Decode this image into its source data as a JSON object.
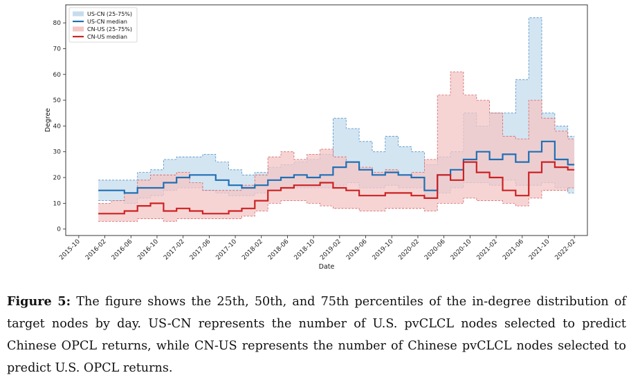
{
  "chart_data": {
    "type": "line",
    "xlabel": "Date",
    "ylabel": "Degree",
    "ylim": [
      -2.5,
      87
    ],
    "xlim": [
      "2015-08",
      "2022-04"
    ],
    "yticks": [
      0,
      10,
      20,
      30,
      40,
      50,
      60,
      70,
      80
    ],
    "xticks": [
      "2015-10",
      "2016-02",
      "2016-06",
      "2016-10",
      "2017-02",
      "2017-06",
      "2017-10",
      "2018-02",
      "2018-06",
      "2018-10",
      "2019-02",
      "2019-06",
      "2019-10",
      "2020-02",
      "2020-06",
      "2020-10",
      "2021-02",
      "2021-06",
      "2021-10",
      "2022-02"
    ],
    "x": [
      "2016-01",
      "2016-03",
      "2016-05",
      "2016-07",
      "2016-09",
      "2016-11",
      "2017-01",
      "2017-03",
      "2017-05",
      "2017-07",
      "2017-09",
      "2017-11",
      "2018-01",
      "2018-03",
      "2018-05",
      "2018-07",
      "2018-09",
      "2018-11",
      "2019-01",
      "2019-03",
      "2019-05",
      "2019-07",
      "2019-09",
      "2019-11",
      "2020-01",
      "2020-03",
      "2020-05",
      "2020-07",
      "2020-09",
      "2020-11",
      "2021-01",
      "2021-03",
      "2021-05",
      "2021-07",
      "2021-09",
      "2021-11",
      "2022-01"
    ],
    "legend": [
      "US-CN (25-75%)",
      "US-CN median",
      "CN-US (25-75%)",
      "CN-US median"
    ],
    "legend_position": "top-left",
    "series": [
      {
        "name": "US-CN median",
        "color": "#1f6fb4",
        "values": [
          15,
          15,
          14,
          16,
          16,
          18,
          20,
          21,
          21,
          19,
          17,
          16,
          17,
          19,
          20,
          21,
          20,
          21,
          24,
          26,
          23,
          21,
          22,
          21,
          20,
          15,
          21,
          23,
          27,
          30,
          27,
          29,
          26,
          30,
          34,
          27,
          25
        ]
      },
      {
        "name": "CN-US median",
        "color": "#cc2222",
        "values": [
          6,
          6,
          7,
          9,
          10,
          7,
          8,
          7,
          6,
          6,
          7,
          8,
          11,
          15,
          16,
          17,
          17,
          18,
          16,
          15,
          13,
          13,
          14,
          14,
          13,
          12,
          21,
          19,
          26,
          22,
          20,
          15,
          13,
          22,
          26,
          24,
          23
        ]
      },
      {
        "name": "US-CN (25-75%)",
        "color": "#c6dcee",
        "edge": "#4a8fc8",
        "low": [
          11,
          11,
          10,
          12,
          13,
          15,
          16,
          16,
          15,
          14,
          13,
          13,
          14,
          15,
          16,
          16,
          16,
          16,
          17,
          18,
          16,
          16,
          17,
          16,
          16,
          12,
          14,
          16,
          18,
          18,
          17,
          19,
          17,
          17,
          18,
          16,
          14
        ],
        "high": [
          19,
          19,
          19,
          22,
          23,
          27,
          28,
          28,
          29,
          26,
          23,
          21,
          22,
          24,
          25,
          26,
          27,
          29,
          43,
          39,
          34,
          30,
          36,
          32,
          30,
          25,
          28,
          30,
          45,
          40,
          45,
          45,
          58,
          82,
          45,
          40,
          36
        ]
      },
      {
        "name": "CN-US (25-75%)",
        "color": "#f4c6c6",
        "edge": "#d26060",
        "low": [
          3,
          3,
          3,
          4,
          4,
          3,
          4,
          4,
          4,
          4,
          4,
          5,
          7,
          10,
          11,
          11,
          10,
          9,
          8,
          8,
          7,
          7,
          8,
          8,
          8,
          7,
          10,
          10,
          12,
          11,
          11,
          10,
          9,
          12,
          15,
          15,
          16
        ],
        "high": [
          10,
          11,
          14,
          19,
          21,
          21,
          22,
          18,
          15,
          15,
          15,
          17,
          21,
          28,
          30,
          27,
          29,
          31,
          28,
          26,
          24,
          22,
          23,
          21,
          22,
          27,
          52,
          61,
          52,
          50,
          45,
          36,
          35,
          50,
          43,
          38,
          35
        ]
      }
    ]
  },
  "caption": {
    "label": "Figure 5:",
    "text": "The figure shows the 25th, 50th, and 75th percentiles of the in-degree distribution of target nodes by day. US-CN represents the number of U.S. pvCLCL nodes selected to predict Chinese OPCL returns, while CN-US represents the number of Chinese pvCLCL nodes selected to predict U.S. OPCL returns."
  }
}
